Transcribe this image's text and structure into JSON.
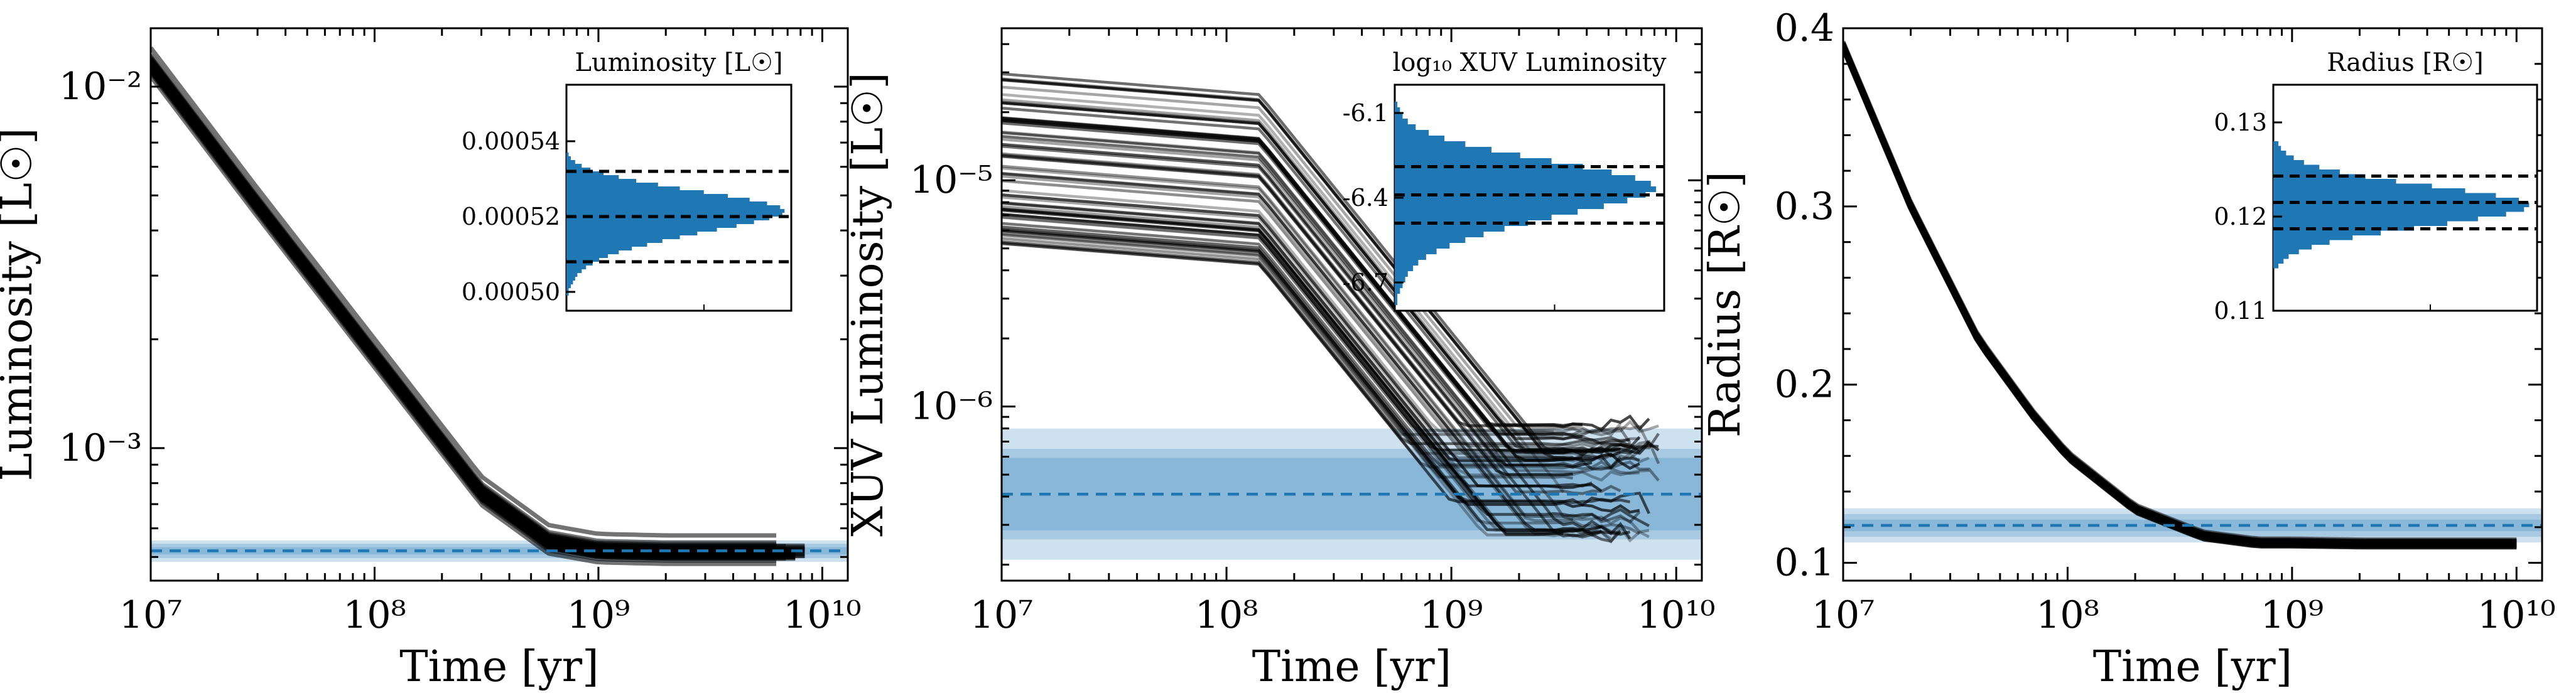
{
  "figure": {
    "panels": [
      {
        "id": "luminosity",
        "xlabel": "Time [yr]",
        "ylabel": "Luminosity [L☉]",
        "y_tick_labels": [
          "10⁻²",
          "10⁻³"
        ],
        "inset_title": "Luminosity [L☉]",
        "inset_tick_labels": [
          "0.00054",
          "0.00052",
          "0.00050"
        ]
      },
      {
        "id": "xuv",
        "xlabel": "Time [yr]",
        "ylabel": "XUV Luminosity [L☉]",
        "y_tick_labels": [
          "10⁻⁵",
          "10⁻⁶"
        ],
        "inset_title": "log₁₀ XUV Luminosity",
        "inset_tick_labels": [
          "-6.1",
          "-6.4",
          "-6.7"
        ]
      },
      {
        "id": "radius",
        "xlabel": "Time [yr]",
        "ylabel": "Radius [R☉]",
        "y_tick_labels": [
          "0.4",
          "0.3",
          "0.2",
          "0.1"
        ],
        "inset_title": "Radius [R☉]",
        "inset_tick_labels": [
          "0.13",
          "0.12",
          "0.11"
        ]
      }
    ],
    "x_tick_labels": [
      "10⁷",
      "10⁸",
      "10⁹",
      "10¹⁰"
    ],
    "colors": {
      "line": "#000000",
      "band": "#1f77b4",
      "hist": "#1f77b4",
      "dashed": "#1f77b4",
      "axis": "#000000"
    }
  },
  "chart_data": [
    {
      "type": "line",
      "id": "luminosity",
      "xlabel": "Time [yr]",
      "ylabel": "Luminosity [L☉]",
      "xscale": "log",
      "yscale": "log",
      "xlim": [
        10000000.0,
        13000000000.0
      ],
      "ylim": [
        0.00043,
        0.0145
      ],
      "x_ticks": [
        10000000.0,
        100000000.0,
        1000000000.0,
        10000000000.0
      ],
      "y_ticks": [
        0.01,
        0.001
      ],
      "grid": false,
      "n_tracks": 60,
      "median_track": {
        "x": [
          10000000.0,
          30000000.0,
          100000000.0,
          300000000.0,
          600000000.0,
          1000000000.0,
          2000000000.0,
          5000000000.0,
          8000000000.0
        ],
        "y": [
          0.0115,
          0.0047,
          0.0018,
          0.00075,
          0.00055,
          0.00052,
          0.000515,
          0.000515,
          0.000515
        ]
      },
      "observed": {
        "median": 0.00052,
        "sigma1": 1.18e-05,
        "sigma2": 2.36e-05,
        "sigma3": 3.54e-05
      },
      "inset": {
        "title": "Luminosity [L☉]",
        "ylim": [
          0.000495,
          0.000555
        ],
        "y_ticks": [
          0.00054,
          0.00052,
          0.0005
        ],
        "bin_width": 1e-06,
        "bin_centers": [
          0.0004995,
          0.0005005,
          0.0005015,
          0.0005025,
          0.0005035,
          0.0005045,
          0.0005055,
          0.0005065,
          0.0005075,
          0.0005085,
          0.0005095,
          0.0005105,
          0.0005115,
          0.0005125,
          0.0005135,
          0.0005145,
          0.0005155,
          0.0005165,
          0.0005175,
          0.0005185,
          0.0005195,
          0.0005205,
          0.0005215,
          0.0005225,
          0.0005235,
          0.0005245,
          0.0005255,
          0.0005265,
          0.0005275,
          0.0005285,
          0.0005295,
          0.0005305,
          0.0005315,
          0.0005325,
          0.0005335,
          0.0005345,
          0.0005355,
          0.0005365
        ],
        "counts": [
          1,
          1,
          2,
          3,
          4,
          5,
          7,
          9,
          12,
          15,
          19,
          24,
          30,
          37,
          44,
          52,
          60,
          69,
          78,
          86,
          93,
          99,
          100,
          98,
          92,
          84,
          74,
          63,
          52,
          42,
          32,
          24,
          17,
          11,
          7,
          4,
          2,
          1
        ],
        "dashed_lines": [
          0.000508,
          0.00052,
          0.000532
        ]
      }
    },
    {
      "type": "line",
      "id": "xuv",
      "xlabel": "Time [yr]",
      "ylabel": "XUV Luminosity [L☉]",
      "xscale": "log",
      "yscale": "log",
      "xlim": [
        10000000.0,
        13000000000.0
      ],
      "ylim": [
        1.7e-07,
        4.7e-05
      ],
      "x_ticks": [
        10000000.0,
        100000000.0,
        1000000000.0,
        10000000000.0
      ],
      "y_ticks": [
        1e-05,
        1e-06
      ],
      "grid": false,
      "n_tracks": 60,
      "tracks_alpha": 0.35,
      "sat_end_x": 140000000.0,
      "post_sat_slope": -1.23,
      "track_spread": {
        "x": [
          10000000.0
        ],
        "y_min": 5.2e-06,
        "y_max": 3.1e-05
      },
      "plateau_range": [
        2.7e-07,
        8.5e-07
      ],
      "observed": {
        "median": 4.1e-07,
        "sigma1": 0.16,
        "sigma2": 0.2,
        "sigma3": 0.29
      },
      "inset": {
        "title": "log₁₀ XUV Luminosity",
        "ylim": [
          -6.8,
          -6.0
        ],
        "y_ticks": [
          -6.1,
          -6.4,
          -6.7
        ],
        "bin_width": 0.02,
        "bin_centers": [
          -6.77,
          -6.75,
          -6.73,
          -6.71,
          -6.69,
          -6.67,
          -6.65,
          -6.63,
          -6.61,
          -6.59,
          -6.57,
          -6.55,
          -6.53,
          -6.51,
          -6.49,
          -6.47,
          -6.45,
          -6.43,
          -6.41,
          -6.39,
          -6.37,
          -6.35,
          -6.33,
          -6.31,
          -6.29,
          -6.27,
          -6.25,
          -6.23,
          -6.21,
          -6.19,
          -6.17,
          -6.15,
          -6.13,
          -6.11,
          -6.09,
          -6.07
        ],
        "counts": [
          1,
          1,
          2,
          3,
          4,
          5,
          7,
          9,
          12,
          16,
          21,
          27,
          34,
          42,
          51,
          60,
          70,
          80,
          89,
          96,
          100,
          98,
          92,
          83,
          72,
          60,
          48,
          37,
          27,
          19,
          13,
          8,
          5,
          3,
          2,
          1
        ],
        "dashed_lines": [
          -6.49,
          -6.39,
          -6.29
        ]
      }
    },
    {
      "type": "line",
      "id": "radius",
      "xlabel": "Time [yr]",
      "ylabel": "Radius [R☉]",
      "xscale": "log",
      "yscale": "linear",
      "xlim": [
        10000000.0,
        13000000000.0
      ],
      "ylim": [
        0.09,
        0.4
      ],
      "x_ticks": [
        10000000.0,
        100000000.0,
        1000000000.0,
        10000000000.0
      ],
      "y_ticks": [
        0.4,
        0.3,
        0.2,
        0.1
      ],
      "grid": false,
      "n_tracks": 60,
      "median_track": {
        "x": [
          10000000.0,
          20000000.0,
          40000000.0,
          70000000.0,
          100000000.0,
          200000000.0,
          400000000.0,
          700000000.0,
          1000000000.0,
          2000000000.0,
          5000000000.0,
          10000000000.0
        ],
        "y": [
          0.39,
          0.3,
          0.225,
          0.183,
          0.16,
          0.13,
          0.115,
          0.111,
          0.111,
          0.1105,
          0.1105,
          0.1105
        ]
      },
      "observed": {
        "median": 0.121,
        "sigma1": 0.0032,
        "sigma2": 0.0064,
        "sigma3": 0.0096
      },
      "inset": {
        "title": "Radius [R☉]",
        "ylim": [
          0.11,
          0.134
        ],
        "y_ticks": [
          0.13,
          0.12,
          0.11
        ],
        "bin_width": 0.0005,
        "bin_centers": [
          0.11475,
          0.11525,
          0.11575,
          0.11625,
          0.11675,
          0.11725,
          0.11775,
          0.11825,
          0.11875,
          0.11925,
          0.11975,
          0.12025,
          0.12075,
          0.12125,
          0.12175,
          0.12225,
          0.12275,
          0.12325,
          0.12375,
          0.12425,
          0.12475,
          0.12525,
          0.12575,
          0.12625,
          0.12675,
          0.12725,
          0.12775
        ],
        "counts": [
          2,
          4,
          6,
          10,
          15,
          22,
          31,
          42,
          55,
          68,
          80,
          91,
          98,
          100,
          96,
          87,
          75,
          62,
          48,
          36,
          26,
          18,
          12,
          8,
          5,
          3,
          2
        ],
        "dashed_lines": [
          0.1187,
          0.1215,
          0.1243
        ]
      }
    }
  ]
}
